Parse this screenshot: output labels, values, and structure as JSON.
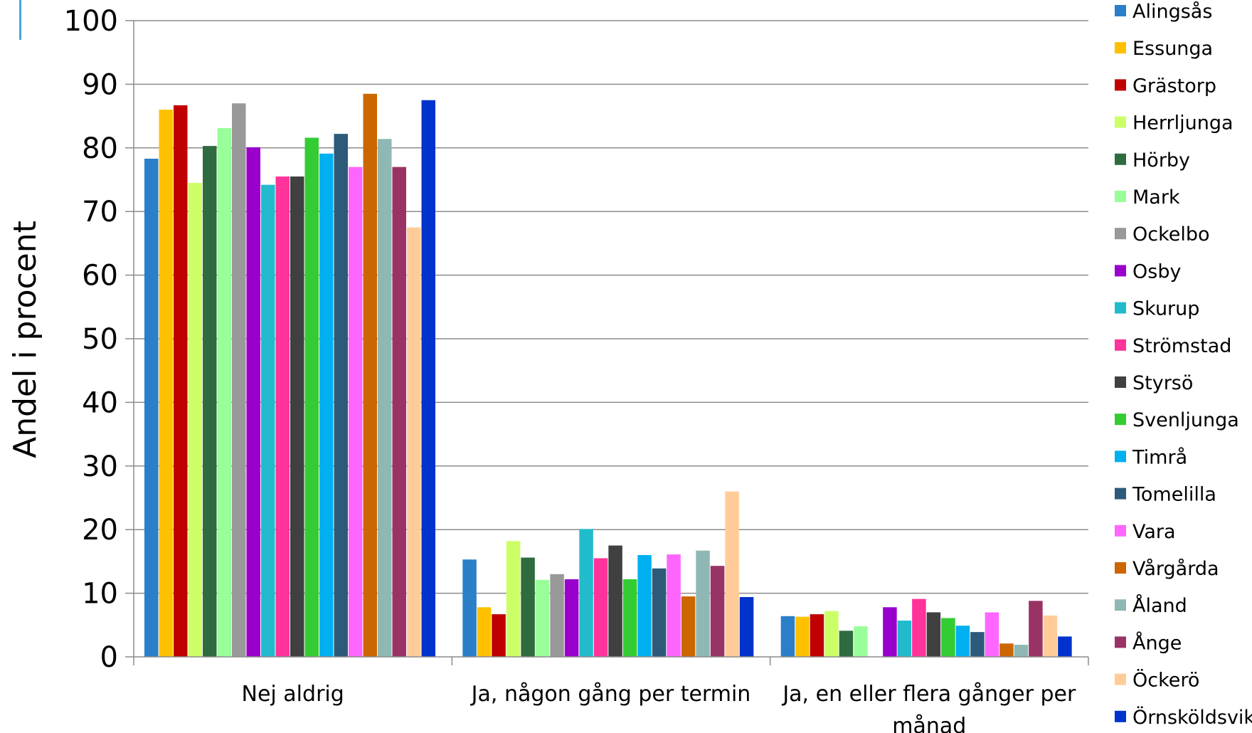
{
  "accent_color": "#4aa3df",
  "chart_data": {
    "type": "bar",
    "title": "",
    "ylabel": "Andel i procent",
    "xlabel": "",
    "ylim": [
      0,
      100
    ],
    "yticks": [
      "0",
      "10",
      "20",
      "30",
      "40",
      "50",
      "60",
      "70",
      "80",
      "90",
      "100"
    ],
    "grid": true,
    "legend_position": "right",
    "categories": [
      [
        "Nej aldrig"
      ],
      [
        "Ja, någon gång per termin"
      ],
      [
        "Ja, en eller flera gånger per",
        "månad"
      ]
    ],
    "series": [
      {
        "name": "Alingsås",
        "color": "#2a7fc8",
        "values": [
          78.3,
          15.3,
          6.4
        ]
      },
      {
        "name": "Essunga",
        "color": "#ffc000",
        "values": [
          86.0,
          7.8,
          6.3
        ]
      },
      {
        "name": "Grästorp",
        "color": "#c00000",
        "values": [
          86.7,
          6.7,
          6.7
        ]
      },
      {
        "name": "Herrljunga",
        "color": "#ccff66",
        "values": [
          74.5,
          18.2,
          7.2
        ]
      },
      {
        "name": "Hörby",
        "color": "#2e6b3f",
        "values": [
          80.3,
          15.6,
          4.1
        ]
      },
      {
        "name": "Mark",
        "color": "#99ff99",
        "values": [
          83.1,
          12.1,
          4.8
        ]
      },
      {
        "name": "Ockelbo",
        "color": "#999999",
        "values": [
          87.0,
          13.0,
          0
        ]
      },
      {
        "name": "Osby",
        "color": "#9900cc",
        "values": [
          80.1,
          12.2,
          7.8
        ]
      },
      {
        "name": "Skurup",
        "color": "#22bbcc",
        "values": [
          74.2,
          20.1,
          5.7
        ]
      },
      {
        "name": "Strömstad",
        "color": "#ff3399",
        "values": [
          75.5,
          15.5,
          9.1
        ]
      },
      {
        "name": "Styrsö",
        "color": "#404040",
        "values": [
          75.5,
          17.5,
          7.0
        ]
      },
      {
        "name": "Svenljunga",
        "color": "#33cc33",
        "values": [
          81.6,
          12.2,
          6.1
        ]
      },
      {
        "name": "Timrå",
        "color": "#00b0f0",
        "values": [
          79.1,
          16.0,
          4.9
        ]
      },
      {
        "name": "Tomelilla",
        "color": "#2e5a7a",
        "values": [
          82.2,
          13.9,
          3.9
        ]
      },
      {
        "name": "Vara",
        "color": "#ff66ff",
        "values": [
          77.0,
          16.1,
          7.0
        ]
      },
      {
        "name": "Vårgårda",
        "color": "#cc6600",
        "values": [
          88.5,
          9.5,
          2.1
        ]
      },
      {
        "name": "Åland",
        "color": "#8fb8b4",
        "values": [
          81.4,
          16.7,
          1.9
        ]
      },
      {
        "name": "Ånge",
        "color": "#993366",
        "values": [
          77.0,
          14.3,
          8.8
        ]
      },
      {
        "name": "Öckerö",
        "color": "#ffcc99",
        "values": [
          67.5,
          26.0,
          6.5
        ]
      },
      {
        "name": "Örnsköldsvik",
        "color": "#0033cc",
        "values": [
          87.5,
          9.4,
          3.2
        ]
      }
    ]
  }
}
